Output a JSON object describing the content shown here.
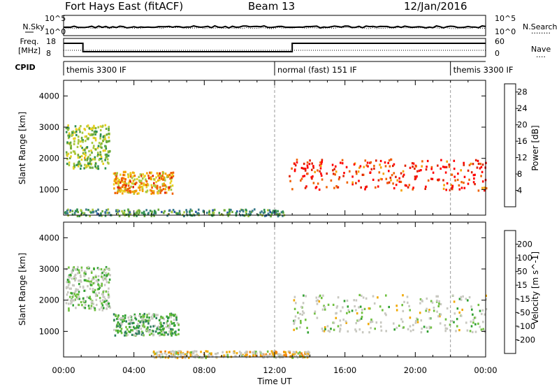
{
  "header": {
    "station": "Fort Hays East (fitACF)",
    "beam": "Beam 13",
    "date": "12/Jan/2016"
  },
  "summary_labels": {
    "nsky": "N.Sky",
    "nsearch": "N.Search",
    "freq": "Freq.",
    "freq_unit": "[MHz]",
    "nave": "Nave",
    "cpid": "CPID",
    "legend_dots": "........",
    "nave_dots": "...."
  },
  "summary_ticks": {
    "noise_top": "10^5",
    "noise_bottom": "10^0",
    "freq_top": "18",
    "freq_bottom": "8",
    "nave_top": "60",
    "nave_bottom": "0"
  },
  "cpid_segments": [
    {
      "label": "themis 3300 IF",
      "start_hour": 0,
      "end_hour": 12
    },
    {
      "label": "normal (fast) 151 IF",
      "start_hour": 12,
      "end_hour": 22
    },
    {
      "label": "themis 3300 IF",
      "start_hour": 22,
      "end_hour": 24
    }
  ],
  "chart_data": [
    {
      "type": "heatmap",
      "parameter": "Power",
      "ylabel": "Slant Range [km]",
      "xlabel": "Time UT",
      "x_ticks": [
        "00:00",
        "04:00",
        "08:00",
        "12:00",
        "16:00",
        "20:00",
        "00:00"
      ],
      "x_range_hours": [
        0,
        24
      ],
      "ylim": [
        180,
        4500
      ],
      "y_ticks": [
        1000,
        2000,
        3000,
        4000
      ],
      "colorbar": {
        "label": "Power [dB]",
        "ticks": [
          "4",
          "8",
          "12",
          "16",
          "20",
          "24",
          "28"
        ],
        "range": [
          0,
          30
        ],
        "colors": [
          "#0000ff",
          "#2a55a8",
          "#3a7a8a",
          "#2f8f4f",
          "#6aaa3a",
          "#a8c840",
          "#e8d020",
          "#f5a000",
          "#f06000",
          "#e02000",
          "#ff0000"
        ]
      },
      "regions": [
        {
          "t_start": 0.1,
          "t_end": 2.6,
          "r_start": 1700,
          "r_end": 3100,
          "value": 14
        },
        {
          "t_start": 2.8,
          "t_end": 6.2,
          "r_start": 900,
          "r_end": 1600,
          "value": 20
        },
        {
          "t_start": 12.8,
          "t_end": 24.0,
          "r_start": 1000,
          "r_end": 2000,
          "value": 26
        },
        {
          "t_start": 0.0,
          "t_end": 12.5,
          "r_start": 180,
          "r_end": 400,
          "value": 10
        }
      ]
    },
    {
      "type": "heatmap",
      "parameter": "Velocity",
      "ylabel": "Slant Range [km]",
      "xlabel": "Time UT",
      "x_ticks": [
        "00:00",
        "04:00",
        "08:00",
        "12:00",
        "16:00",
        "20:00",
        "00:00"
      ],
      "x_range_hours": [
        0,
        24
      ],
      "ylim": [
        180,
        4500
      ],
      "y_ticks": [
        1000,
        2000,
        3000,
        4000
      ],
      "colorbar": {
        "label": "Velocity [m s^-1]",
        "ticks": [
          "200",
          "100",
          "50",
          "15",
          "-15",
          "-50",
          "-100",
          "-200"
        ],
        "range": [
          -250,
          250
        ],
        "colors": [
          "#ff0000",
          "#f04000",
          "#f08000",
          "#f0a800",
          "#c8c8c0",
          "#c8c8c0",
          "#70c040",
          "#30a030",
          "#2f7f5f",
          "#2040a0",
          "#1030c0"
        ]
      },
      "regions": [
        {
          "t_start": 0.1,
          "t_end": 2.6,
          "r_start": 1700,
          "r_end": 3100,
          "value": 20
        },
        {
          "t_start": 2.8,
          "t_end": 6.5,
          "r_start": 900,
          "r_end": 1600,
          "value": 60
        },
        {
          "t_start": 13.0,
          "t_end": 24.0,
          "r_start": 1000,
          "r_end": 2200,
          "value": 0
        },
        {
          "t_start": 5.0,
          "t_end": 14.0,
          "r_start": 180,
          "r_end": 400,
          "value": -50
        }
      ]
    }
  ]
}
